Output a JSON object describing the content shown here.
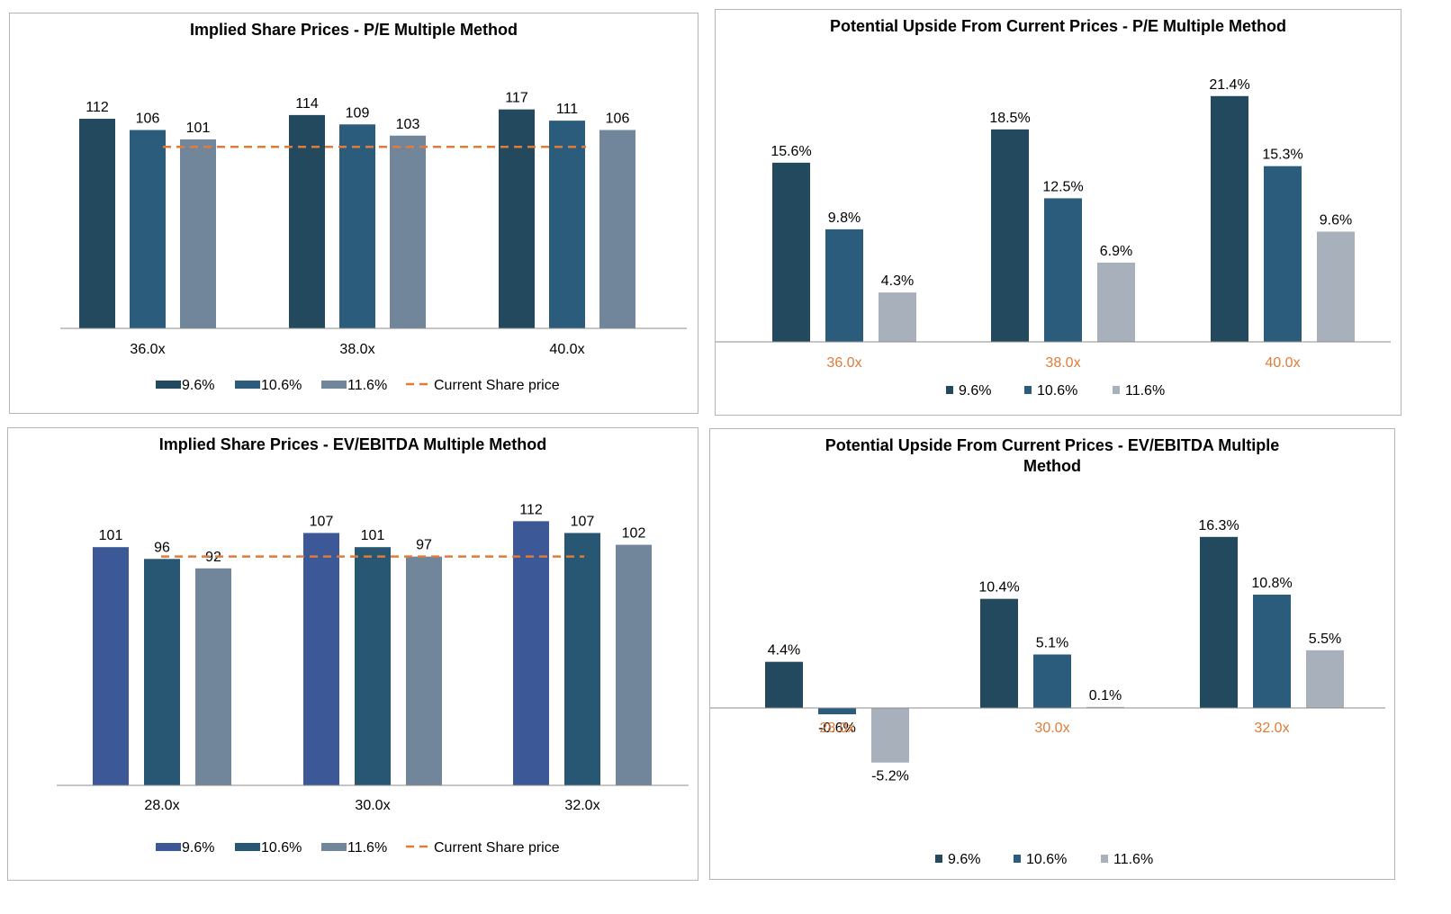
{
  "colors": {
    "current_price_line": "#E07B39",
    "axis_line": "#8c8c8c",
    "text": "#000000",
    "orange_tick": "#E07B39"
  },
  "legend_labels": {
    "series_1": "9.6%",
    "series_2": "10.6%",
    "series_3": "11.6%",
    "current_price": "Current Share price"
  },
  "chart_data": [
    {
      "id": "pe_prices",
      "type": "bar",
      "title": "Implied Share Prices - P/E Multiple Method",
      "categories": [
        "36.0x",
        "38.0x",
        "40.0x"
      ],
      "series": [
        {
          "name": "9.6%",
          "values": [
            112,
            114,
            117
          ],
          "labels": [
            "112",
            "114",
            "117"
          ],
          "color": "#23495F"
        },
        {
          "name": "10.6%",
          "values": [
            106,
            109,
            111
          ],
          "labels": [
            "106",
            "109",
            "111"
          ],
          "color": "#2C5C7B"
        },
        {
          "name": "11.6%",
          "values": [
            101,
            103,
            106
          ],
          "labels": [
            "101",
            "103",
            "106"
          ],
          "color": "#72869B"
        }
      ],
      "reference_line": {
        "name": "Current Share price",
        "value": 97
      },
      "ylim": [
        0,
        125
      ],
      "tick_color": "#000000",
      "legend": "bottom"
    },
    {
      "id": "pe_upside",
      "type": "bar",
      "title": "Potential Upside From Current Prices - P/E Multiple Method",
      "categories": [
        "36.0x",
        "38.0x",
        "40.0x"
      ],
      "series": [
        {
          "name": "9.6%",
          "values": [
            15.6,
            18.5,
            21.4
          ],
          "labels": [
            "15.6%",
            "18.5%",
            "21.4%"
          ],
          "color": "#23495F"
        },
        {
          "name": "10.6%",
          "values": [
            9.8,
            12.5,
            15.3
          ],
          "labels": [
            "9.8%",
            "12.5%",
            "15.3%"
          ],
          "color": "#2C5C7B"
        },
        {
          "name": "11.6%",
          "values": [
            4.3,
            6.9,
            9.6
          ],
          "labels": [
            "4.3%",
            "6.9%",
            "9.6%"
          ],
          "color": "#A8B0BC"
        }
      ],
      "ylim": [
        0,
        23.5
      ],
      "tick_color": "#E07B39",
      "legend": "bottom"
    },
    {
      "id": "ev_prices",
      "type": "bar",
      "title": "Implied Share Prices - EV/EBITDA Multiple Method",
      "categories": [
        "28.0x",
        "30.0x",
        "32.0x"
      ],
      "series": [
        {
          "name": "9.6%",
          "values": [
            101,
            107,
            112
          ],
          "labels": [
            "101",
            "107",
            "112"
          ],
          "color": "#3C5896"
        },
        {
          "name": "10.6%",
          "values": [
            96,
            101,
            107
          ],
          "labels": [
            "96",
            "101",
            "107"
          ],
          "color": "#285773"
        },
        {
          "name": "11.6%",
          "values": [
            92,
            97,
            102
          ],
          "labels": [
            "92",
            "97",
            "102"
          ],
          "color": "#72869B"
        }
      ],
      "reference_line": {
        "name": "Current Share price",
        "value": 97
      },
      "ylim": [
        0,
        119
      ],
      "tick_color": "#000000",
      "legend": "bottom"
    },
    {
      "id": "ev_upside",
      "type": "bar",
      "title": "Potential Upside From Current Prices - EV/EBITDA Multiple Method",
      "title_lines": [
        "Potential Upside From Current Prices - EV/EBITDA Multiple",
        "Method"
      ],
      "categories": [
        "28.0x",
        "30.0x",
        "32.0x"
      ],
      "series": [
        {
          "name": "9.6%",
          "values": [
            4.4,
            10.4,
            16.3
          ],
          "labels": [
            "4.4%",
            "10.4%",
            "16.3%"
          ],
          "color": "#23495F"
        },
        {
          "name": "10.6%",
          "values": [
            -0.6,
            5.1,
            10.8
          ],
          "labels": [
            "-0.6%",
            "5.1%",
            "10.8%"
          ],
          "color": "#2C5C7B"
        },
        {
          "name": "11.6%",
          "values": [
            -5.2,
            0.1,
            5.5
          ],
          "labels": [
            "-5.2%",
            "0.1%",
            "5.5%"
          ],
          "color": "#A8B0BC"
        }
      ],
      "ylim": [
        -7,
        18
      ],
      "tick_color": "#E07B39",
      "legend": "bottom"
    }
  ]
}
